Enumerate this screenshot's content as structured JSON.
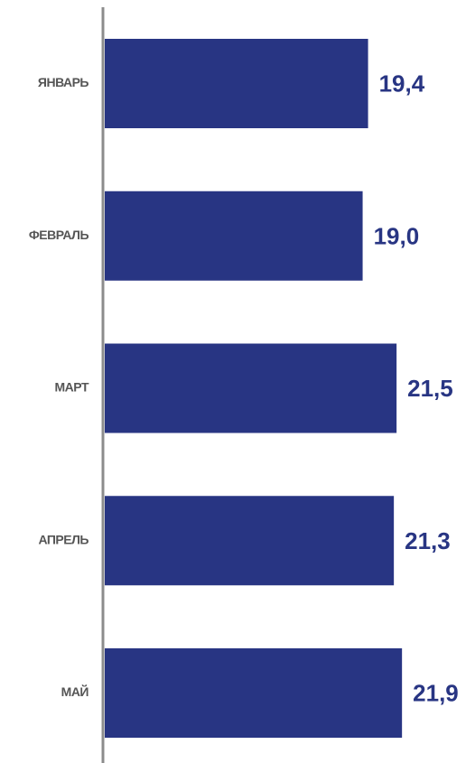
{
  "chart_data": {
    "type": "bar",
    "orientation": "horizontal",
    "categories": [
      "ЯНВАРЬ",
      "ФЕВРАЛЬ",
      "МАРТ",
      "АПРЕЛЬ",
      "МАЙ"
    ],
    "values": [
      19.4,
      19.0,
      21.5,
      21.3,
      21.9
    ],
    "value_labels": [
      "19,4",
      "19,0",
      "21,5",
      "21,3",
      "21,9"
    ],
    "grid": false,
    "legend": "none"
  },
  "colors": {
    "bar": "#283583",
    "value_text": "#283583",
    "category_text": "#555555",
    "axis": "#8c8c8c"
  }
}
